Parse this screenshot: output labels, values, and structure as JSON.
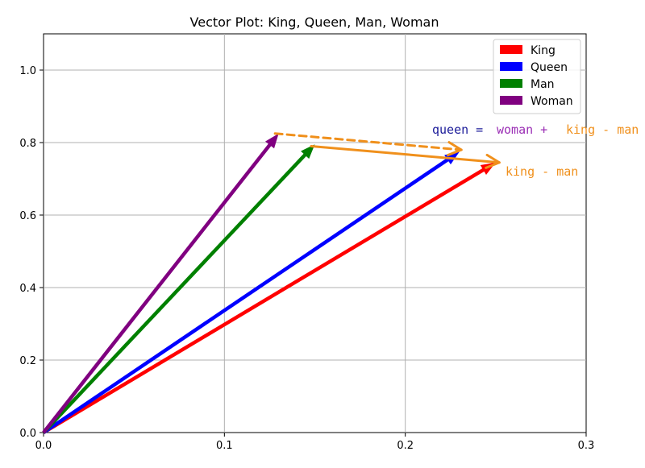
{
  "chart_data": {
    "type": "line",
    "title": "Vector Plot: King, Queen, Man, Woman",
    "xlabel": "",
    "ylabel": "",
    "xlim": [
      0.0,
      0.3
    ],
    "ylim": [
      0.0,
      1.1
    ],
    "xticks": [
      "0.0",
      "0.1",
      "0.2",
      "0.3"
    ],
    "yticks": [
      "0.0",
      "0.2",
      "0.4",
      "0.6",
      "0.8",
      "1.0"
    ],
    "grid": true,
    "legend_position": "top-right",
    "series": [
      {
        "name": "King",
        "color": "#ff0000",
        "from": [
          0,
          0
        ],
        "to": [
          0.25,
          0.745
        ]
      },
      {
        "name": "Queen",
        "color": "#0000ff",
        "from": [
          0,
          0
        ],
        "to": [
          0.23,
          0.775
        ]
      },
      {
        "name": "Man",
        "color": "#008000",
        "from": [
          0,
          0
        ],
        "to": [
          0.15,
          0.795
        ]
      },
      {
        "name": "Woman",
        "color": "#800080",
        "from": [
          0,
          0
        ],
        "to": [
          0.13,
          0.825
        ]
      }
    ],
    "annotations": {
      "king_minus_man": {
        "color": "#f0901c",
        "from": [
          0.148,
          0.79
        ],
        "to": [
          0.252,
          0.745
        ],
        "label": "king - man"
      },
      "woman_plus": {
        "color": "#f0901c",
        "from": [
          0.128,
          0.825
        ],
        "to": [
          0.231,
          0.78
        ],
        "dashed": true
      },
      "equation": {
        "queen_part": "queen =",
        "queen_color": "#1a1a99",
        "woman_part": "woman +",
        "woman_color": "#9b2fb5",
        "diff_part": "king - man",
        "diff_color": "#f0901c"
      }
    }
  }
}
